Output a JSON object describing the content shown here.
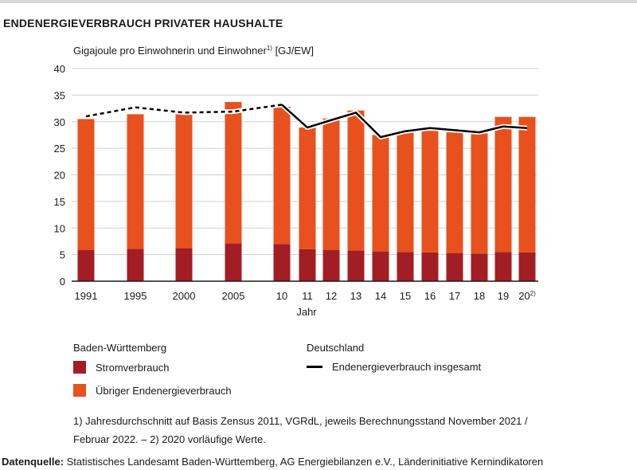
{
  "title": "ENDENERGIEVERBRAUCH PRIVATER HAUSHALTE",
  "colors": {
    "strom": "#a31d24",
    "uebrig": "#e8511d",
    "line": "#000000"
  },
  "chart_data": {
    "type": "bar",
    "unit_label": {
      "text": "Gigajoule pro Einwohnerin und Einwohner",
      "sup": "1)",
      "suffix": " [GJ/EW]"
    },
    "xlabel": "Jahr",
    "ylim": [
      0,
      40
    ],
    "yticks": [
      "0",
      "5",
      "10",
      "15",
      "20",
      "25",
      "30",
      "35",
      "40"
    ],
    "categories": [
      "1991",
      "1995",
      "2000",
      "2005",
      "10",
      "11",
      "12",
      "13",
      "14",
      "15",
      "16",
      "17",
      "18",
      "19",
      "20"
    ],
    "category_sup": [
      "",
      "",
      "",
      "",
      "",
      "",
      "",
      "",
      "",
      "",
      "",
      "",
      "",
      "",
      "2)"
    ],
    "stacked": true,
    "series": [
      {
        "name": "Stromverbrauch",
        "values": [
          5.9,
          6.1,
          6.2,
          7.1,
          7.0,
          6.0,
          5.9,
          5.8,
          5.6,
          5.5,
          5.4,
          5.3,
          5.2,
          5.5,
          5.4
        ]
      },
      {
        "name": "Übriger Endenergieverbrauch",
        "values": [
          24.6,
          25.3,
          25.2,
          26.6,
          25.8,
          22.9,
          24.7,
          26.3,
          21.9,
          22.6,
          22.9,
          22.7,
          22.6,
          25.4,
          25.5
        ]
      }
    ],
    "line_series": {
      "name": "Endenergieverbrauch insgesamt",
      "values": [
        31.0,
        32.7,
        31.7,
        31.9,
        33.2,
        28.9,
        30.3,
        31.7,
        27.1,
        28.2,
        28.8,
        28.4,
        28.0,
        29.1,
        28.8
      ],
      "dashed_until_category": "10"
    }
  },
  "legend": {
    "group1_title": "Baden-Württemberg",
    "group2_title": "Deutschland",
    "item_strom": "Stromverbrauch",
    "item_uebrig": "Übriger Endenergieverbrauch",
    "item_line": "Endenergieverbrauch insgesamt"
  },
  "footnote": "1) Jahresdurchschnitt auf Basis Zensus 2011, VGRdL, jeweils Berechnungsstand November 2021 / Februar 2022. – 2) 2020 vorläufige Werte.",
  "source": {
    "label": "Datenquelle:",
    "text": " Statistisches Landesamt Baden-Württemberg, AG Energiebilanzen e.V., Länderinitiative Kernindikatoren"
  }
}
